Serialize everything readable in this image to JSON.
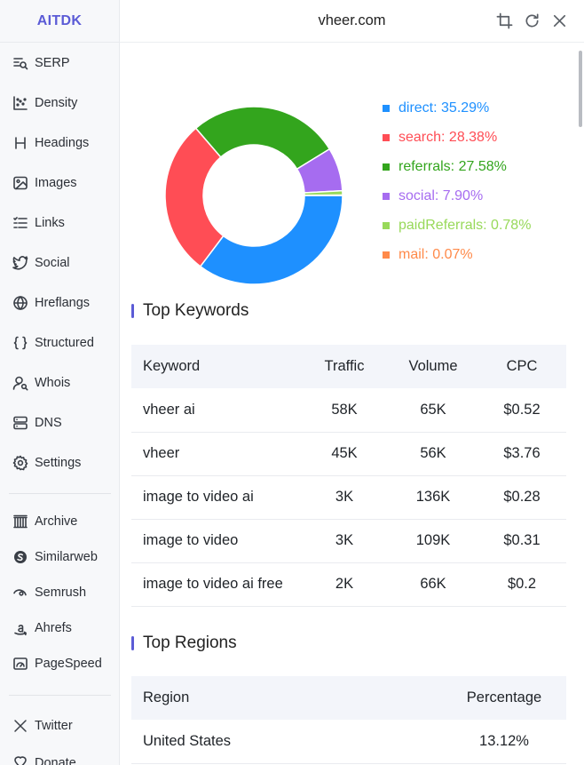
{
  "brand": "AITDK",
  "header": {
    "title": "vheer.com",
    "actions": [
      {
        "name": "crop-icon"
      },
      {
        "name": "refresh-icon"
      },
      {
        "name": "close-icon"
      }
    ]
  },
  "sidebar": {
    "items": [
      {
        "label": "SERP",
        "icon": "serp-search-icon"
      },
      {
        "label": "Density",
        "icon": "scatter-chart-icon"
      },
      {
        "label": "Headings",
        "icon": "heading-icon"
      },
      {
        "label": "Images",
        "icon": "image-icon"
      },
      {
        "label": "Links",
        "icon": "list-icon"
      },
      {
        "label": "Social",
        "icon": "twitter-bird-icon"
      },
      {
        "label": "Hreflangs",
        "icon": "globe-icon"
      },
      {
        "label": "Structured",
        "icon": "braces-icon"
      },
      {
        "label": "Whois",
        "icon": "user-search-icon"
      },
      {
        "label": "DNS",
        "icon": "server-icon"
      },
      {
        "label": "Settings",
        "icon": "gear-icon"
      }
    ],
    "external": [
      {
        "label": "Archive",
        "icon": "archive-building-icon"
      },
      {
        "label": "Similarweb",
        "icon": "similarweb-icon"
      },
      {
        "label": "Semrush",
        "icon": "semrush-icon"
      },
      {
        "label": "Ahrefs",
        "icon": "amazon-a-icon"
      },
      {
        "label": "PageSpeed",
        "icon": "speed-gauge-icon"
      }
    ],
    "social": [
      {
        "label": "Twitter",
        "icon": "x-logo-icon"
      },
      {
        "label": "Donate",
        "icon": "donate-icon"
      }
    ]
  },
  "traffic_sources": {
    "colors": {
      "direct": "#1e90ff",
      "search": "#ff4d55",
      "referrals": "#33a51d",
      "social": "#a66cf0",
      "paidReferrals": "#98d95a",
      "mail": "#ff8a4a"
    },
    "items": [
      {
        "key": "direct",
        "label": "direct: 35.29%",
        "value": 35.29,
        "color": "#1e90ff"
      },
      {
        "key": "search",
        "label": "search: 28.38%",
        "value": 28.38,
        "color": "#ff4d55"
      },
      {
        "key": "referrals",
        "label": "referrals: 27.58%",
        "value": 27.58,
        "color": "#33a51d"
      },
      {
        "key": "social",
        "label": "social: 7.90%",
        "value": 7.9,
        "color": "#a66cf0"
      },
      {
        "key": "paidReferrals",
        "label": "paidReferrals: 0.78%",
        "value": 0.78,
        "color": "#98d95a"
      },
      {
        "key": "mail",
        "label": "mail: 0.07%",
        "value": 0.07,
        "color": "#ff8a4a"
      }
    ]
  },
  "top_keywords": {
    "title": "Top Keywords",
    "columns": [
      "Keyword",
      "Traffic",
      "Volume",
      "CPC"
    ],
    "rows": [
      [
        "vheer ai",
        "58K",
        "65K",
        "$0.52"
      ],
      [
        "vheer",
        "45K",
        "56K",
        "$3.76"
      ],
      [
        "image to video ai",
        "3K",
        "136K",
        "$0.28"
      ],
      [
        "image to video",
        "3K",
        "109K",
        "$0.31"
      ],
      [
        "image to video ai free",
        "2K",
        "66K",
        "$0.2"
      ]
    ]
  },
  "top_regions": {
    "title": "Top Regions",
    "columns": [
      "Region",
      "Percentage"
    ],
    "rows": [
      [
        "United States",
        "13.12%"
      ]
    ]
  }
}
